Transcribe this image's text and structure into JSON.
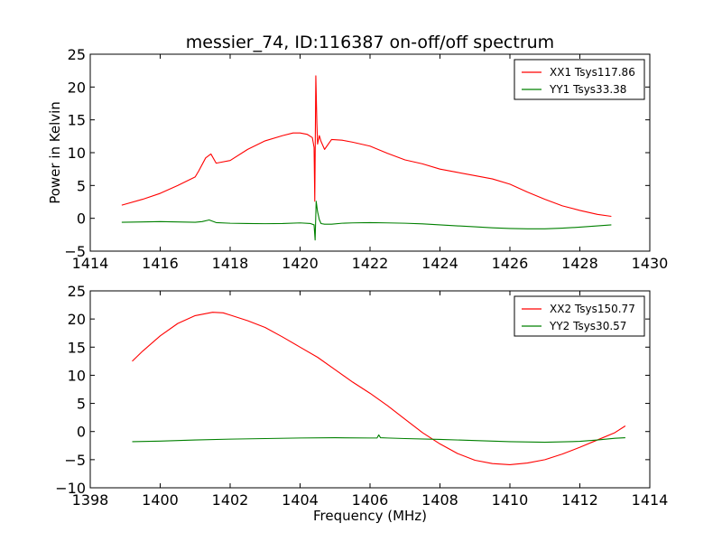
{
  "figure": {
    "title": "messier_74, ID:116387 on-off/off spectrum",
    "xlabel": "Frequency (MHz)",
    "ylabel": "Power in Kelvin"
  },
  "chart_data": [
    {
      "type": "line",
      "xlim": [
        1414,
        1430
      ],
      "ylim": [
        -5,
        25
      ],
      "xticks": [
        1414,
        1416,
        1418,
        1420,
        1422,
        1424,
        1426,
        1428,
        1430
      ],
      "yticks": [
        -5,
        0,
        5,
        10,
        15,
        20,
        25
      ],
      "grid": false,
      "legend_position": "top-right",
      "series": [
        {
          "name": "XX1 Tsys117.86",
          "color": "#ff0000",
          "x": [
            1414.9,
            1415.5,
            1416.0,
            1416.5,
            1417.0,
            1417.1,
            1417.3,
            1417.45,
            1417.6,
            1418.0,
            1418.5,
            1419.0,
            1419.5,
            1419.8,
            1420.0,
            1420.2,
            1420.35,
            1420.4,
            1420.42,
            1420.45,
            1420.48,
            1420.5,
            1420.55,
            1420.6,
            1420.7,
            1420.9,
            1421.2,
            1421.5,
            1422.0,
            1422.5,
            1423.0,
            1423.5,
            1424.0,
            1424.5,
            1425.0,
            1425.5,
            1426.0,
            1426.5,
            1427.0,
            1427.5,
            1428.0,
            1428.5,
            1428.9
          ],
          "y": [
            2.0,
            2.9,
            3.8,
            5.0,
            6.3,
            7.2,
            9.2,
            9.8,
            8.4,
            8.8,
            10.5,
            11.8,
            12.6,
            13.0,
            13.0,
            12.8,
            12.3,
            10.8,
            2.6,
            21.7,
            14.5,
            11.3,
            12.6,
            11.7,
            10.5,
            12.0,
            11.9,
            11.6,
            11.0,
            9.9,
            8.9,
            8.3,
            7.5,
            7.0,
            6.5,
            6.0,
            5.2,
            4.0,
            2.9,
            1.9,
            1.2,
            0.6,
            0.3
          ]
        },
        {
          "name": "YY1 Tsys33.38",
          "color": "#008000",
          "x": [
            1414.9,
            1415.5,
            1416.0,
            1416.5,
            1417.0,
            1417.2,
            1417.4,
            1417.6,
            1418.0,
            1418.5,
            1419.0,
            1419.5,
            1420.0,
            1420.3,
            1420.4,
            1420.43,
            1420.46,
            1420.5,
            1420.55,
            1420.6,
            1420.7,
            1420.9,
            1421.2,
            1421.5,
            1422.0,
            1422.5,
            1423.0,
            1423.5,
            1424.0,
            1424.5,
            1425.0,
            1425.5,
            1426.0,
            1426.5,
            1427.0,
            1427.5,
            1428.0,
            1428.5,
            1428.9
          ],
          "y": [
            -0.6,
            -0.55,
            -0.5,
            -0.55,
            -0.6,
            -0.5,
            -0.25,
            -0.65,
            -0.75,
            -0.8,
            -0.82,
            -0.8,
            -0.7,
            -0.8,
            -1.0,
            -3.3,
            2.6,
            1.0,
            -0.2,
            -0.8,
            -0.9,
            -0.9,
            -0.75,
            -0.7,
            -0.65,
            -0.7,
            -0.75,
            -0.85,
            -1.0,
            -1.15,
            -1.3,
            -1.45,
            -1.55,
            -1.6,
            -1.6,
            -1.5,
            -1.35,
            -1.15,
            -1.0
          ]
        }
      ]
    },
    {
      "type": "line",
      "xlim": [
        1398,
        1414
      ],
      "ylim": [
        -10,
        25
      ],
      "xticks": [
        1398,
        1400,
        1402,
        1404,
        1406,
        1408,
        1410,
        1412,
        1414
      ],
      "yticks": [
        -10,
        -5,
        0,
        5,
        10,
        15,
        20,
        25
      ],
      "grid": false,
      "legend_position": "top-right",
      "series": [
        {
          "name": "XX2 Tsys150.77",
          "color": "#ff0000",
          "x": [
            1399.2,
            1399.5,
            1400.0,
            1400.5,
            1401.0,
            1401.5,
            1401.8,
            1402.0,
            1402.5,
            1403.0,
            1403.5,
            1404.0,
            1404.5,
            1405.0,
            1405.5,
            1406.0,
            1406.5,
            1407.0,
            1407.5,
            1408.0,
            1408.5,
            1409.0,
            1409.5,
            1410.0,
            1410.5,
            1411.0,
            1411.5,
            1412.0,
            1412.5,
            1413.0,
            1413.3
          ],
          "y": [
            12.5,
            14.3,
            17.0,
            19.2,
            20.6,
            21.2,
            21.1,
            20.7,
            19.7,
            18.5,
            16.8,
            15.0,
            13.2,
            11.0,
            8.8,
            6.8,
            4.6,
            2.2,
            -0.2,
            -2.2,
            -3.9,
            -5.1,
            -5.7,
            -5.9,
            -5.6,
            -5.0,
            -4.0,
            -2.8,
            -1.5,
            -0.2,
            1.0
          ]
        },
        {
          "name": "YY2 Tsys30.57",
          "color": "#008000",
          "x": [
            1399.2,
            1400.0,
            1401.0,
            1402.0,
            1403.0,
            1404.0,
            1405.0,
            1406.0,
            1406.2,
            1406.25,
            1406.3,
            1406.5,
            1407.0,
            1408.0,
            1409.0,
            1410.0,
            1411.0,
            1412.0,
            1412.5,
            1413.0,
            1413.3
          ],
          "y": [
            -1.8,
            -1.7,
            -1.5,
            -1.35,
            -1.25,
            -1.15,
            -1.1,
            -1.15,
            -1.15,
            -0.6,
            -1.1,
            -1.15,
            -1.25,
            -1.4,
            -1.6,
            -1.8,
            -1.9,
            -1.75,
            -1.5,
            -1.2,
            -1.1
          ]
        }
      ]
    }
  ]
}
